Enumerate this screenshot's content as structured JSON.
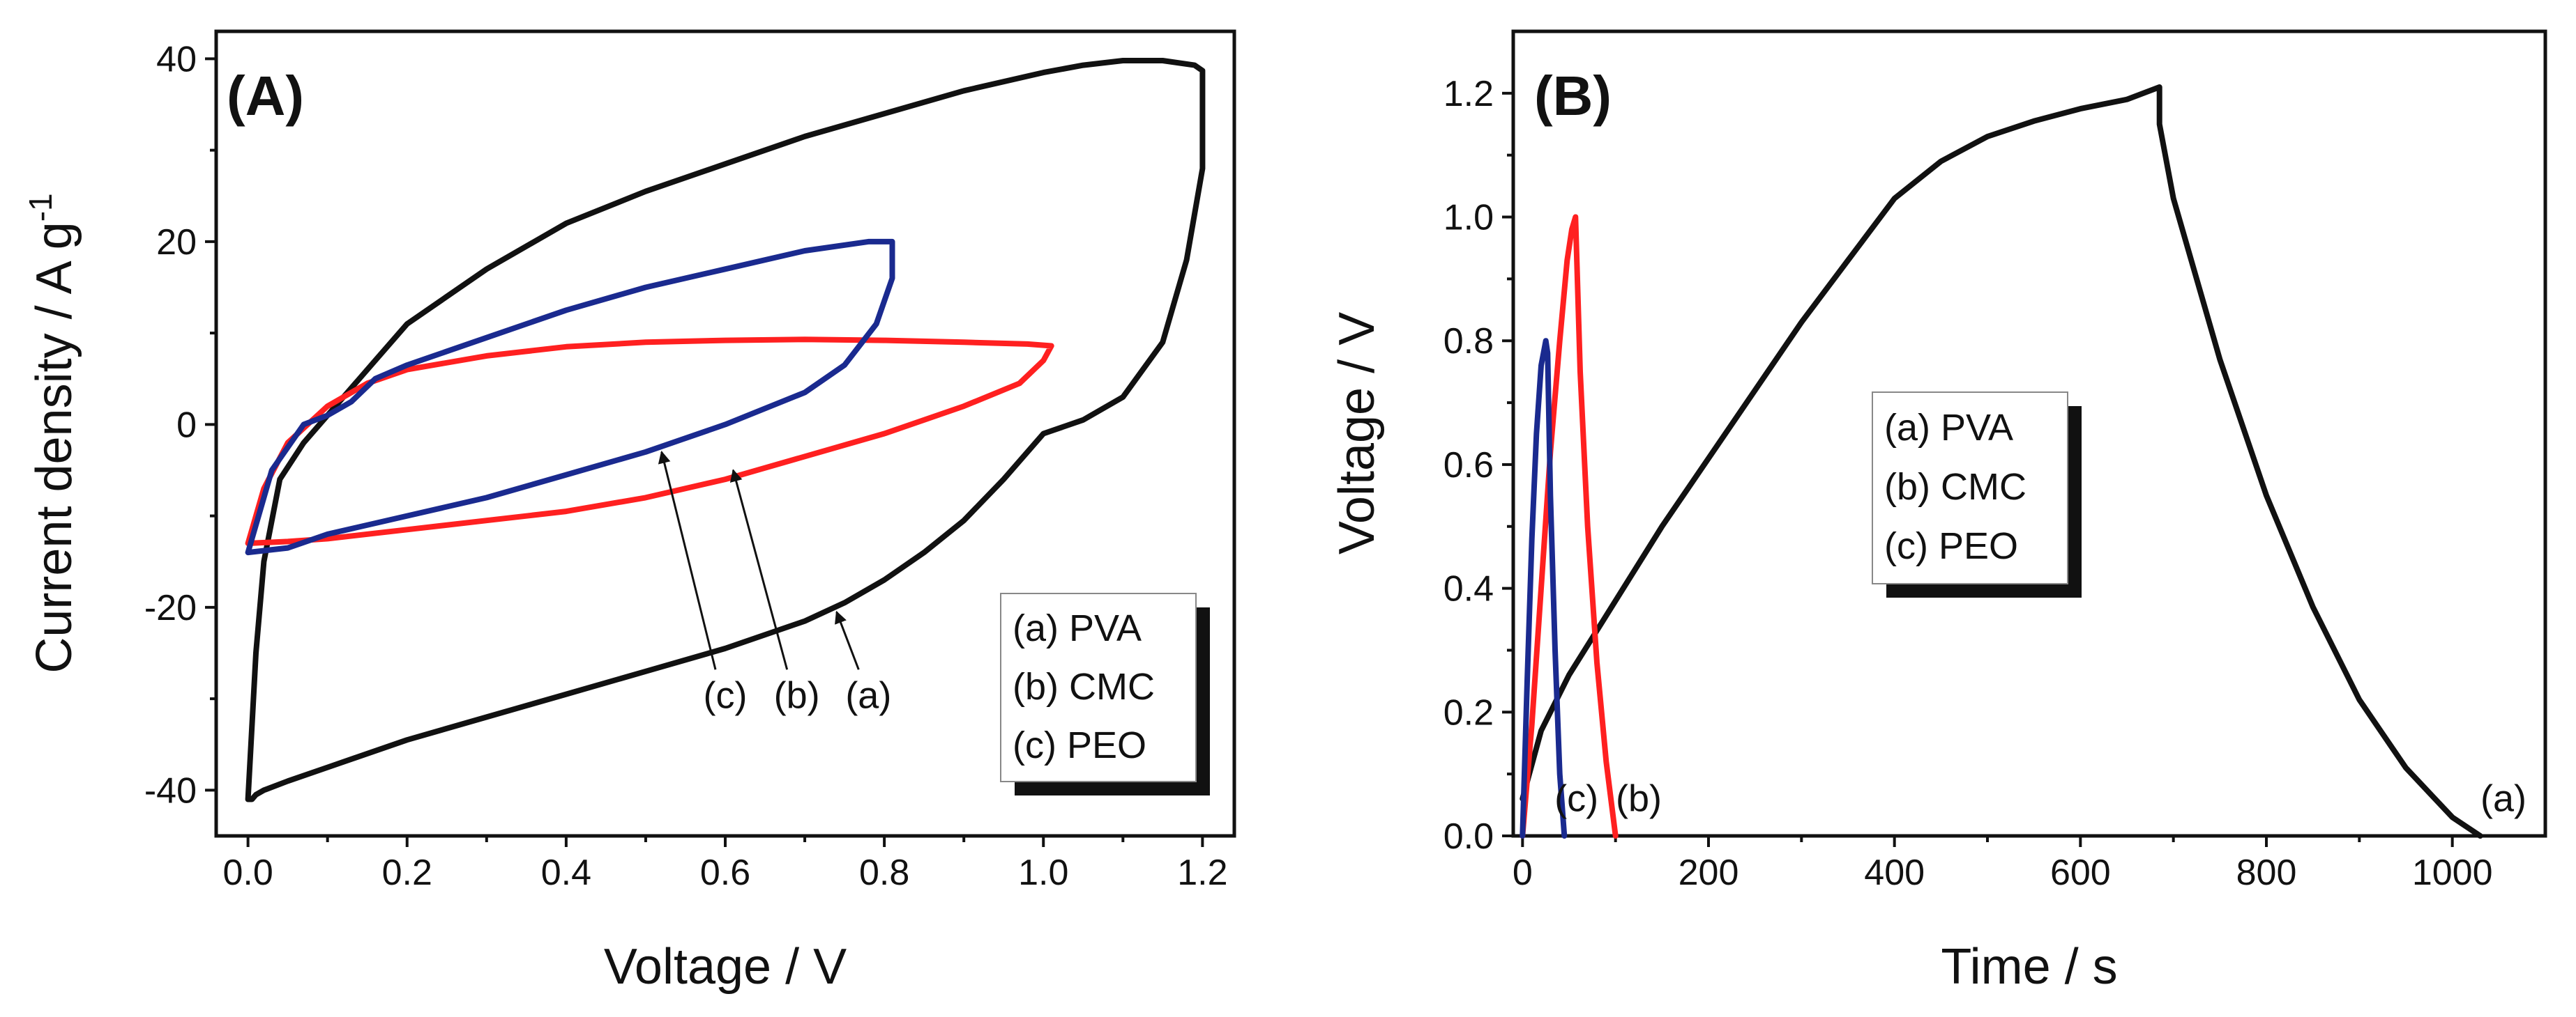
{
  "chart_data": [
    {
      "type": "line",
      "panel_label": "(A)",
      "xlabel": "Voltage / V",
      "ylabel": "Current density / A g",
      "ylabel_sup": "-1",
      "xlim": [
        -0.04,
        1.24
      ],
      "ylim": [
        -45,
        43
      ],
      "xticks": [
        "0.0",
        "0.2",
        "0.4",
        "0.6",
        "0.8",
        "1.0",
        "1.2"
      ],
      "xtick_values": [
        0,
        0.2,
        0.4,
        0.6,
        0.8,
        1.0,
        1.2
      ],
      "yticks": [
        "-40",
        "-20",
        "0",
        "20",
        "40"
      ],
      "ytick_values": [
        -40,
        -20,
        0,
        20,
        40
      ],
      "legend": [
        "(a) PVA",
        "(b) CMC",
        "(c) PEO"
      ],
      "annotations": [
        {
          "text": "(a)",
          "x": 0.78,
          "y": -31,
          "arrow_to": [
            0.74,
            -20.5
          ]
        },
        {
          "text": "(b)",
          "x": 0.69,
          "y": -31,
          "arrow_to": [
            0.61,
            -5
          ]
        },
        {
          "text": "(c)",
          "x": 0.6,
          "y": -31,
          "arrow_to": [
            0.52,
            -3
          ]
        }
      ],
      "series": [
        {
          "name": "(a) PVA",
          "color": "#111111",
          "x": [
            0.0,
            0.01,
            0.02,
            0.04,
            0.07,
            0.1,
            0.13,
            0.16,
            0.2,
            0.3,
            0.4,
            0.5,
            0.6,
            0.7,
            0.8,
            0.9,
            1.0,
            1.05,
            1.1,
            1.15,
            1.19,
            1.2,
            1.2,
            1.18,
            1.15,
            1.1,
            1.05,
            1.0,
            0.95,
            0.9,
            0.85,
            0.8,
            0.75,
            0.7,
            0.6,
            0.5,
            0.4,
            0.3,
            0.2,
            0.1,
            0.05,
            0.02,
            0.01,
            0.005,
            0.0
          ],
          "y": [
            -41,
            -25,
            -15,
            -6,
            -2,
            1,
            4,
            7,
            11,
            17,
            22,
            25.5,
            28.5,
            31.5,
            34,
            36.5,
            38.5,
            39.3,
            39.8,
            39.8,
            39.3,
            38.7,
            28,
            18,
            9,
            3,
            0.5,
            -1,
            -6,
            -10.5,
            -14,
            -17,
            -19.5,
            -21.5,
            -24.5,
            -27,
            -29.5,
            -32,
            -34.5,
            -37.5,
            -39,
            -40,
            -40.5,
            -41,
            -41
          ]
        },
        {
          "name": "(b) CMC",
          "color": "#ff2020",
          "x": [
            0.0,
            0.02,
            0.05,
            0.1,
            0.15,
            0.2,
            0.3,
            0.4,
            0.5,
            0.6,
            0.7,
            0.8,
            0.9,
            0.98,
            1.01,
            1.0,
            0.97,
            0.9,
            0.8,
            0.7,
            0.6,
            0.5,
            0.4,
            0.3,
            0.2,
            0.1,
            0.05,
            0.0
          ],
          "y": [
            -13,
            -7,
            -2,
            2,
            4.5,
            6,
            7.5,
            8.5,
            9,
            9.2,
            9.3,
            9.2,
            9,
            8.8,
            8.6,
            7,
            4.5,
            2,
            -1,
            -3.5,
            -6,
            -8,
            -9.5,
            -10.5,
            -11.5,
            -12.5,
            -12.8,
            -13
          ]
        },
        {
          "name": "(c) PEO",
          "color": "#1a2a8f",
          "x": [
            0.0,
            0.03,
            0.07,
            0.1,
            0.13,
            0.16,
            0.2,
            0.3,
            0.4,
            0.5,
            0.6,
            0.7,
            0.78,
            0.81,
            0.81,
            0.79,
            0.75,
            0.7,
            0.6,
            0.5,
            0.4,
            0.3,
            0.2,
            0.1,
            0.05,
            0.0
          ],
          "y": [
            -14,
            -5,
            0,
            1,
            2.5,
            5,
            6.5,
            9.5,
            12.5,
            15,
            17,
            19,
            20,
            20,
            16,
            11,
            6.5,
            3.5,
            0,
            -3,
            -5.5,
            -8,
            -10,
            -12,
            -13.5,
            -14
          ]
        }
      ]
    },
    {
      "type": "line",
      "panel_label": "(B)",
      "xlabel": "Time / s",
      "ylabel": "Voltage / V",
      "xlim": [
        -10,
        1100
      ],
      "ylim": [
        0,
        1.3
      ],
      "xticks": [
        "0",
        "200",
        "400",
        "600",
        "800",
        "1000"
      ],
      "xtick_values": [
        0,
        200,
        400,
        600,
        800,
        1000
      ],
      "yticks": [
        "0.0",
        "0.2",
        "0.4",
        "0.6",
        "0.8",
        "1.0",
        "1.2"
      ],
      "ytick_values": [
        0,
        0.2,
        0.4,
        0.6,
        0.8,
        1.0,
        1.2
      ],
      "legend": [
        "(a) PVA",
        "(b) CMC",
        "(c) PEO"
      ],
      "annotations": [
        {
          "text": "(a)",
          "x": 1055,
          "y": 0.04
        },
        {
          "text": "(b)",
          "x": 125,
          "y": 0.04
        },
        {
          "text": "(c)",
          "x": 58,
          "y": 0.04
        }
      ],
      "series": [
        {
          "name": "(a) PVA",
          "color": "#111111",
          "x": [
            0,
            20,
            50,
            100,
            150,
            200,
            250,
            300,
            350,
            400,
            450,
            500,
            550,
            600,
            650,
            685,
            685,
            700,
            750,
            800,
            850,
            900,
            950,
            1000,
            1030
          ],
          "y": [
            0.06,
            0.17,
            0.26,
            0.38,
            0.5,
            0.61,
            0.72,
            0.83,
            0.93,
            1.03,
            1.09,
            1.13,
            1.155,
            1.175,
            1.19,
            1.21,
            1.15,
            1.03,
            0.77,
            0.55,
            0.37,
            0.22,
            0.11,
            0.03,
            0.0
          ]
        },
        {
          "name": "(b) CMC",
          "color": "#ff2020",
          "x": [
            0,
            10,
            20,
            30,
            40,
            48,
            53,
            57,
            62,
            70,
            80,
            90,
            100
          ],
          "y": [
            0,
            0.18,
            0.4,
            0.62,
            0.8,
            0.93,
            0.98,
            1.0,
            0.75,
            0.5,
            0.28,
            0.12,
            0.0
          ]
        },
        {
          "name": "(c) PEO",
          "color": "#1a2a8f",
          "x": [
            0,
            5,
            10,
            15,
            20,
            25,
            27,
            30,
            35,
            40,
            45
          ],
          "y": [
            0,
            0.25,
            0.48,
            0.65,
            0.76,
            0.8,
            0.78,
            0.55,
            0.3,
            0.1,
            0.0
          ]
        }
      ]
    }
  ]
}
